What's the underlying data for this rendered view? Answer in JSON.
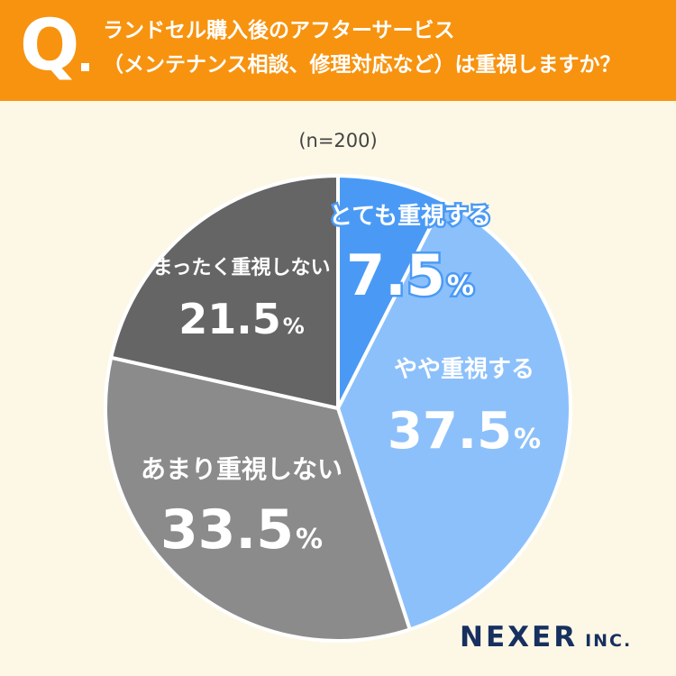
{
  "header": {
    "q_mark": "Q",
    "question_line1": "ランドセル購入後のアフターサービス",
    "question_line2": "（メンテナンス相談、修理対応など）は重視しますか？"
  },
  "sample_size": "(n=200)",
  "brand": {
    "name": "NEXER",
    "suffix": "INC."
  },
  "colors": {
    "header_bg": "#f7930f",
    "background": "#fdf8e6",
    "logo": "#17305f"
  },
  "chart_data": {
    "type": "pie",
    "start_angle": "12 o'clock, clockwise",
    "slices": [
      {
        "label": "とても重視する",
        "value": 7.5,
        "value_text": "7.5",
        "unit": "%",
        "color": "#4a9af5"
      },
      {
        "label": "やや重視する",
        "value": 37.5,
        "value_text": "37.5",
        "unit": "%",
        "color": "#8cc0fb"
      },
      {
        "label": "あまり重視しない",
        "value": 33.5,
        "value_text": "33.5",
        "unit": "%",
        "color": "#8c8b8b"
      },
      {
        "label": "まったく重視しない",
        "value": 21.5,
        "value_text": "21.5",
        "unit": "%",
        "color": "#666565"
      }
    ]
  }
}
